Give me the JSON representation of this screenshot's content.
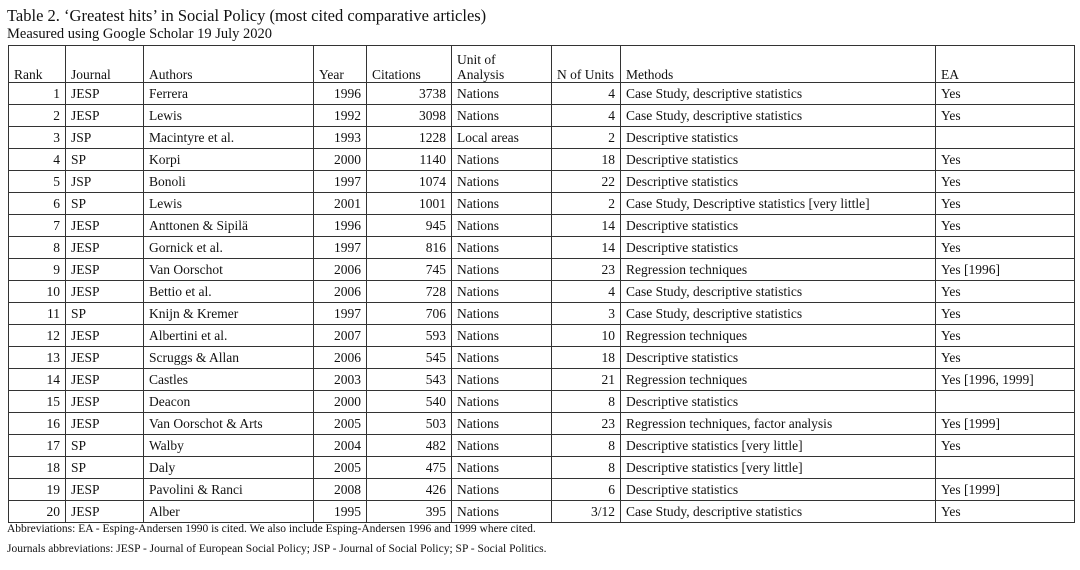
{
  "header": {
    "title": "Table 2. ‘Greatest hits’ in Social Policy (most cited comparative articles)",
    "subtitle": "Measured using Google Scholar 19 July 2020"
  },
  "table": {
    "columns": [
      "Rank",
      "Journal",
      "Authors",
      "Year",
      "Citations",
      "Unit of Analysis",
      "N of Units",
      "Methods",
      "EA"
    ],
    "rows": [
      [
        1,
        "JESP",
        "Ferrera",
        1996,
        3738,
        "Nations",
        4,
        "Case Study, descriptive statistics",
        "Yes"
      ],
      [
        2,
        "JESP",
        "Lewis",
        1992,
        3098,
        "Nations",
        4,
        "Case Study, descriptive statistics",
        "Yes"
      ],
      [
        3,
        "JSP",
        "Macintyre et al.",
        1993,
        1228,
        "Local areas",
        2,
        "Descriptive statistics"
      ],
      [
        4,
        "SP",
        "Korpi",
        2000,
        1140,
        "Nations",
        18,
        "Descriptive statistics",
        "Yes"
      ],
      [
        5,
        "JSP",
        "Bonoli",
        1997,
        1074,
        "Nations",
        22,
        "Descriptive statistics",
        "Yes"
      ],
      [
        6,
        "SP",
        "Lewis",
        2001,
        1001,
        "Nations",
        2,
        "Case Study, Descriptive statistics [very little]",
        "Yes"
      ],
      [
        7,
        "JESP",
        "Anttonen & Sipilä",
        1996,
        945,
        "Nations",
        14,
        "Descriptive statistics",
        "Yes"
      ],
      [
        8,
        "JESP",
        "Gornick et al.",
        1997,
        816,
        "Nations",
        14,
        "Descriptive statistics",
        "Yes"
      ],
      [
        9,
        "JESP",
        "Van Oorschot",
        2006,
        745,
        "Nations",
        23,
        "Regression techniques",
        "Yes [1996]"
      ],
      [
        10,
        "JESP",
        "Bettio et al.",
        2006,
        728,
        "Nations",
        4,
        "Case Study, descriptive statistics",
        "Yes"
      ],
      [
        11,
        "SP",
        "Knijn & Kremer",
        1997,
        706,
        "Nations",
        3,
        "Case Study, descriptive statistics",
        "Yes"
      ],
      [
        12,
        "JESP",
        "Albertini et al.",
        2007,
        593,
        "Nations",
        10,
        "Regression techniques",
        "Yes"
      ],
      [
        13,
        "JESP",
        "Scruggs & Allan",
        2006,
        545,
        "Nations",
        18,
        "Descriptive statistics",
        "Yes"
      ],
      [
        14,
        "JESP",
        "Castles",
        2003,
        543,
        "Nations",
        21,
        "Regression techniques",
        "Yes [1996, 1999]"
      ],
      [
        15,
        "JESP",
        "Deacon",
        2000,
        540,
        "Nations",
        8,
        "Descriptive statistics"
      ],
      [
        16,
        "JESP",
        "Van Oorschot & Arts",
        2005,
        503,
        "Nations",
        23,
        "Regression techniques, factor analysis",
        "Yes [1999]"
      ],
      [
        17,
        "SP",
        "Walby",
        2004,
        482,
        "Nations",
        8,
        "Descriptive statistics [very little]",
        "Yes"
      ],
      [
        18,
        "SP",
        "Daly",
        2005,
        475,
        "Nations",
        8,
        "Descriptive statistics [very little]"
      ],
      [
        19,
        "JESP",
        "Pavolini & Ranci",
        2008,
        426,
        "Nations",
        6,
        "Descriptive statistics",
        "Yes [1999]"
      ],
      [
        20,
        "JESP",
        "Alber",
        1995,
        395,
        "Nations",
        "3/12",
        "Case Study, descriptive statistics",
        "Yes"
      ]
    ]
  },
  "notes": [
    "Abbreviations: EA - Esping-Andersen 1990 is cited. We also include Esping-Andersen 1996 and 1999 where cited.",
    "Journals abbreviations: JESP - Journal of European Social Policy; JSP - Journal of Social Policy; SP - Social Politics."
  ]
}
